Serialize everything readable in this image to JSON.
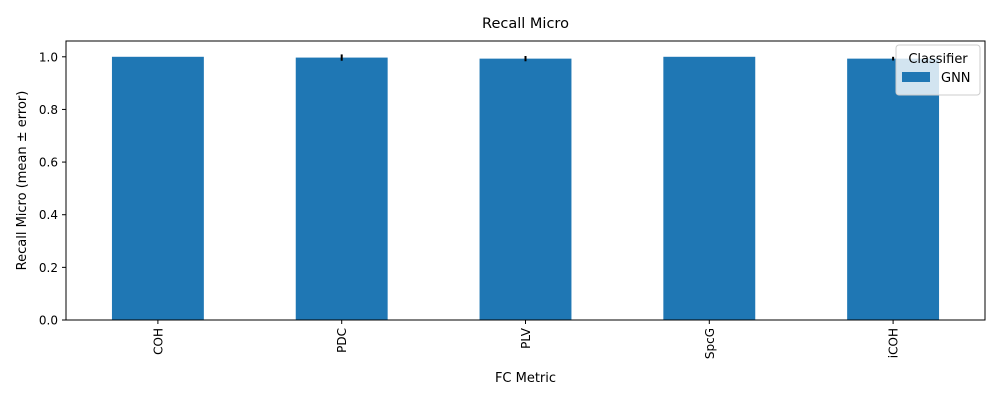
{
  "chart_data": {
    "type": "bar",
    "title": "Recall Micro",
    "xlabel": "FC Metric",
    "ylabel": "Recall Micro (mean ± error)",
    "categories": [
      "COH",
      "PDC",
      "PLV",
      "SpcG",
      "iCOH"
    ],
    "series": [
      {
        "name": "GNN",
        "color": "#1f77b4",
        "values": [
          1.0,
          0.997,
          0.993,
          1.0,
          0.993
        ],
        "errors": [
          0.0,
          0.012,
          0.01,
          0.0,
          0.007
        ]
      }
    ],
    "ylim": [
      0,
      1.06
    ],
    "yticks": [
      0.0,
      0.2,
      0.4,
      0.6,
      0.8,
      1.0
    ],
    "ytick_labels": [
      "0.0",
      "0.2",
      "0.4",
      "0.6",
      "0.8",
      "1.0"
    ],
    "grid": false,
    "legend": {
      "title": "Classifier",
      "placement": "top-right"
    }
  }
}
